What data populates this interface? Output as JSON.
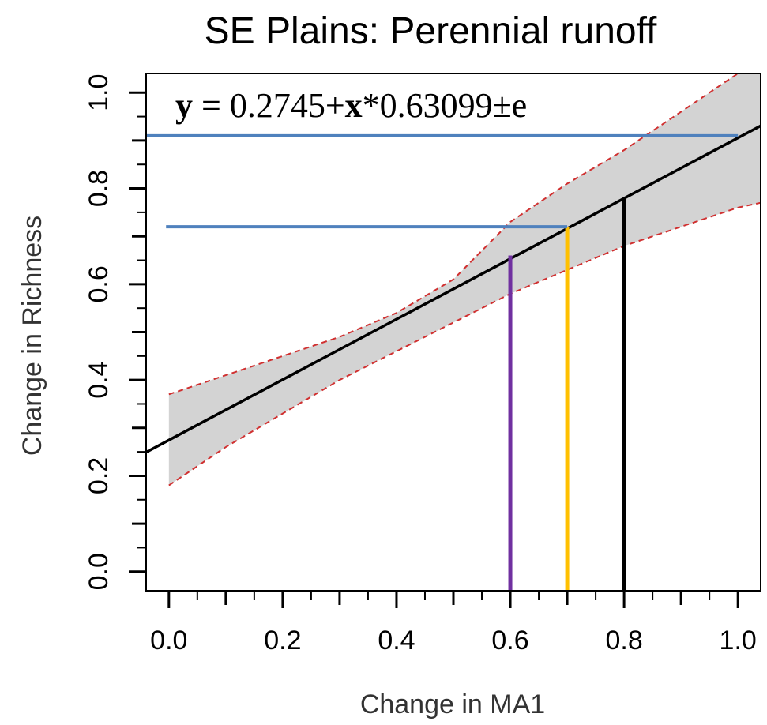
{
  "chart_data": {
    "type": "line",
    "title": "SE Plains: Perennial runoff",
    "xlabel": "Change in MA1",
    "ylabel": "Change in Richness",
    "xlim": [
      -0.04,
      1.04
    ],
    "ylim": [
      -0.04,
      1.04
    ],
    "x_ticks": [
      "0.0",
      "0.2",
      "0.4",
      "0.6",
      "0.8",
      "1.0"
    ],
    "y_ticks": [
      "0.0",
      "0.2",
      "0.4",
      "0.6",
      "0.8",
      "1.0"
    ],
    "equation": {
      "y": "y",
      "part1": " = 0.2745+",
      "x": "x",
      "part2": "*0.63099±e"
    },
    "regression": {
      "intercept": 0.2745,
      "slope": 0.63099,
      "x_range": [
        -0.04,
        1.04
      ],
      "color": "#000000"
    },
    "confidence_band": {
      "fill": "#d3d3d3",
      "edge_color": "#d03030",
      "x": [
        0,
        0.1,
        0.2,
        0.3,
        0.4,
        0.5,
        0.6,
        0.7,
        0.8,
        0.9,
        1.0,
        1.04
      ],
      "lower": [
        0.18,
        0.26,
        0.33,
        0.4,
        0.46,
        0.52,
        0.58,
        0.63,
        0.68,
        0.72,
        0.76,
        0.77
      ],
      "upper": [
        0.37,
        0.41,
        0.45,
        0.49,
        0.54,
        0.61,
        0.73,
        0.81,
        0.88,
        0.96,
        1.04,
        1.07
      ]
    },
    "reference_lines": [
      {
        "orientation": "vertical",
        "x": 0.6,
        "y_from": -0.04,
        "y_to": 0.66,
        "color": "#7030a0"
      },
      {
        "orientation": "vertical",
        "x": 0.7,
        "y_from": -0.04,
        "y_to": 0.72,
        "color": "#ffc000"
      },
      {
        "orientation": "vertical",
        "x": 0.8,
        "y_from": -0.04,
        "y_to": 0.78,
        "color": "#000000"
      },
      {
        "orientation": "horizontal",
        "y": 0.72,
        "x_from": -0.005,
        "x_to": 0.7,
        "color": "#4f81bd"
      },
      {
        "orientation": "horizontal",
        "y": 0.91,
        "x_from": -0.04,
        "x_to": 1.0,
        "color": "#4f81bd"
      }
    ]
  }
}
